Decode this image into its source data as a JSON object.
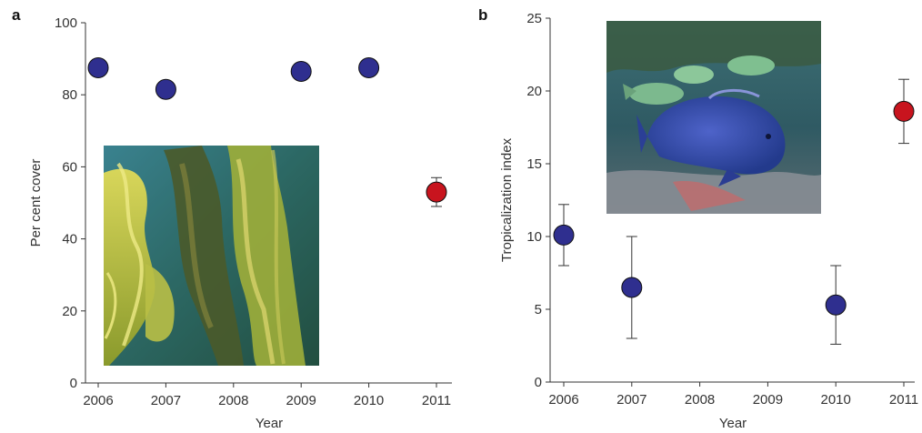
{
  "chart_data": [
    {
      "type": "scatter",
      "panel_label": "a",
      "xlabel": "Year",
      "ylabel": "Per cent cover",
      "x": [
        2006,
        2007,
        2009,
        2010,
        2011
      ],
      "y": [
        87.5,
        81.5,
        86.5,
        87.5,
        53
      ],
      "error_low": [
        null,
        null,
        null,
        null,
        49
      ],
      "error_high": [
        null,
        null,
        null,
        null,
        57
      ],
      "point_colors": [
        "#2f2f8f",
        "#2f2f8f",
        "#2f2f8f",
        "#2f2f8f",
        "#c8141e"
      ],
      "xticks": [
        "2006",
        "2007",
        "2008",
        "2009",
        "2010",
        "2011"
      ],
      "yticks": [
        "0",
        "20",
        "40",
        "60",
        "80",
        "100"
      ],
      "xlim": [
        2006,
        2011
      ],
      "ylim": [
        0,
        100
      ],
      "inset_image": "seaweed-kelp-photo",
      "grid": false
    },
    {
      "type": "scatter",
      "panel_label": "b",
      "xlabel": "Year",
      "ylabel": "Tropicalization index",
      "x": [
        2006,
        2007,
        2010,
        2011
      ],
      "y": [
        10.1,
        6.5,
        5.3,
        18.6
      ],
      "error_low": [
        8.0,
        3.0,
        2.6,
        16.4
      ],
      "error_high": [
        12.2,
        10.0,
        8.0,
        20.8
      ],
      "point_colors": [
        "#2f2f8f",
        "#2f2f8f",
        "#2f2f8f",
        "#c8141e"
      ],
      "xticks": [
        "2006",
        "2007",
        "2008",
        "2009",
        "2010",
        "2011"
      ],
      "yticks": [
        "0",
        "5",
        "10",
        "15",
        "20",
        "25"
      ],
      "xlim": [
        2006,
        2011
      ],
      "ylim": [
        0,
        25
      ],
      "inset_image": "reef-fish-photo",
      "grid": false
    }
  ],
  "colors": {
    "normal_point": "#2f2f8f",
    "highlight_point": "#c8141e",
    "axis": "#333333"
  }
}
